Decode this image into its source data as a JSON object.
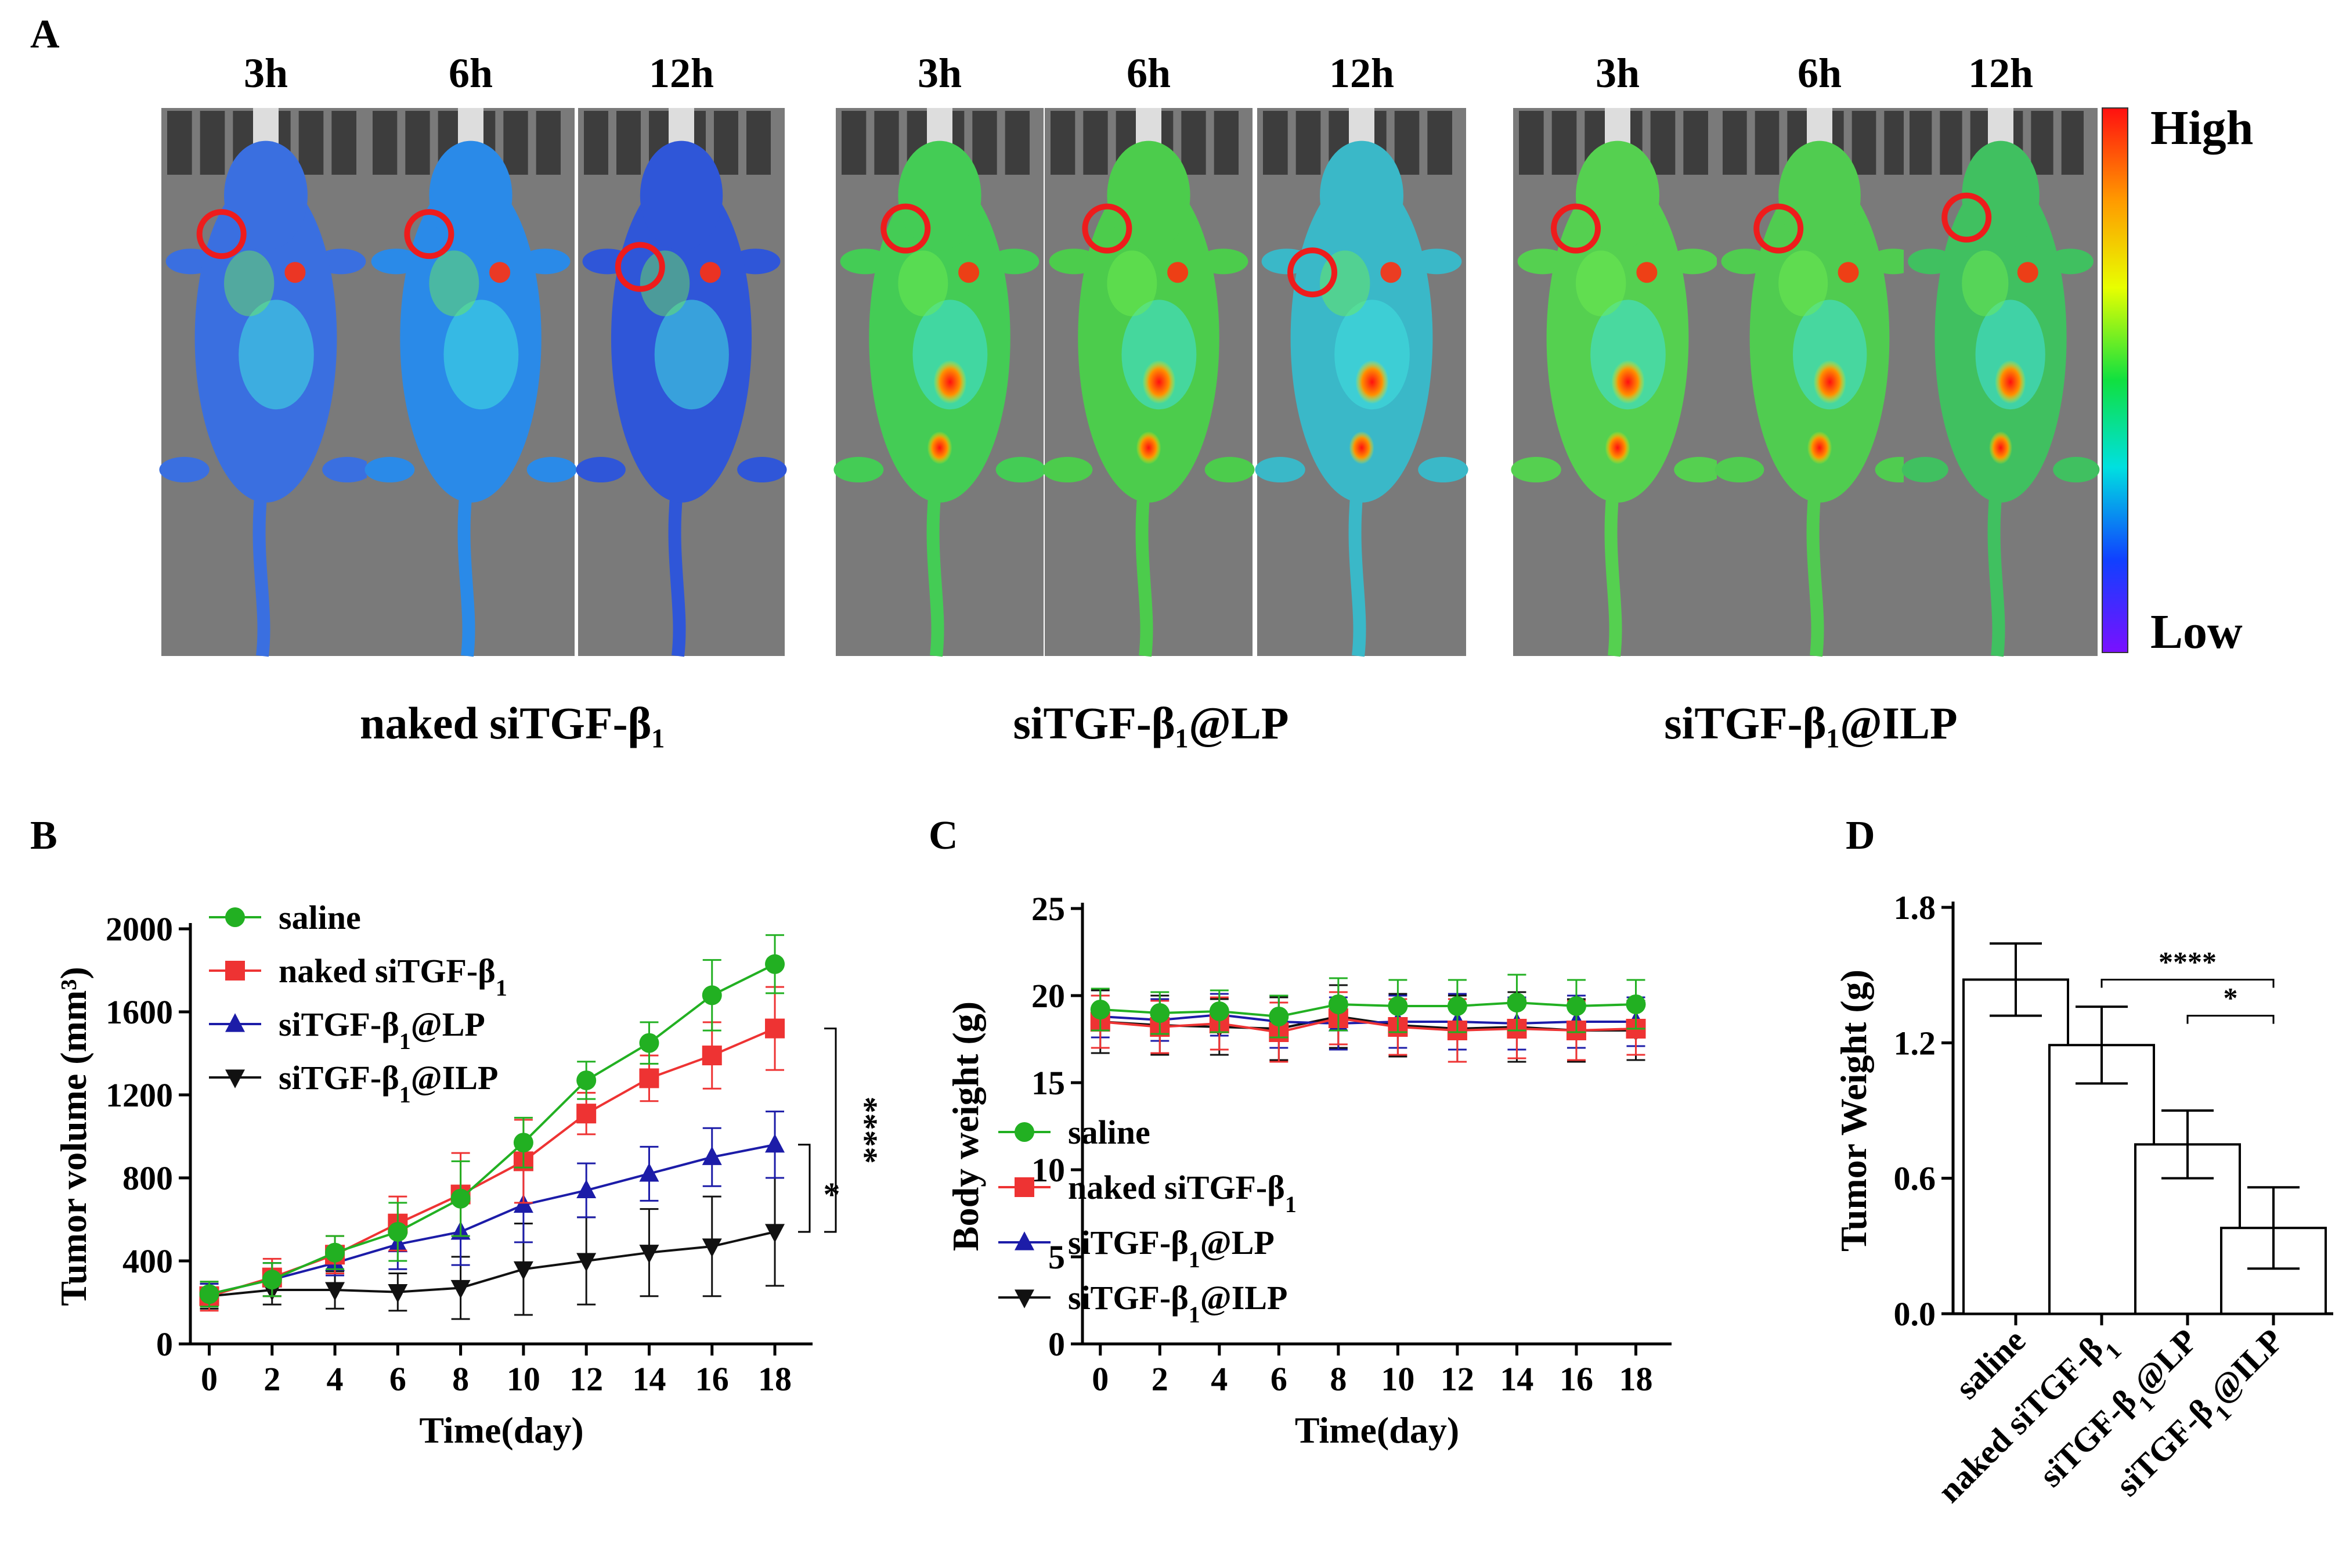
{
  "panels": {
    "a": "A",
    "b": "B",
    "c": "C",
    "d": "D"
  },
  "imaging": {
    "times": [
      "3h",
      "6h",
      "12h",
      "3h",
      "6h",
      "12h",
      "3h",
      "6h",
      "12h"
    ],
    "groups": [
      "naked siTGF-β₁",
      "siTGF-β₁@LP",
      "siTGF-β₁@ILP"
    ],
    "colorbar": {
      "high": "High",
      "low": "Low"
    },
    "colors": {
      "background": "#7a7a7a",
      "body": "#2f66d8",
      "hot": "#ff2a10",
      "circle": "#ee1c1c"
    }
  },
  "chart_data": [
    {
      "id": "B",
      "type": "line",
      "title": "",
      "xlabel": "Time(day)",
      "ylabel": "Tumor volume (mm³)",
      "xlim": [
        -0.6,
        19.2
      ],
      "ylim": [
        0,
        2000
      ],
      "yticks": [
        0,
        400,
        800,
        1200,
        1600,
        2000
      ],
      "x": [
        0,
        2,
        4,
        6,
        8,
        10,
        12,
        14,
        16,
        18
      ],
      "xticks": [
        "0",
        "2",
        "4",
        "6",
        "8",
        "10",
        "12",
        "14",
        "16",
        "18"
      ],
      "legend_position": "top-left",
      "series": [
        {
          "name": "saline",
          "color": "#22b022",
          "marker": "circle",
          "values": [
            240,
            310,
            440,
            540,
            700,
            970,
            1270,
            1450,
            1680,
            1830
          ],
          "errors": [
            60,
            80,
            80,
            140,
            180,
            120,
            90,
            100,
            170,
            140
          ]
        },
        {
          "name": "naked siTGF-β1",
          "color": "#ee3333",
          "marker": "square",
          "values": [
            230,
            320,
            430,
            580,
            720,
            880,
            1110,
            1280,
            1390,
            1520
          ],
          "errors": [
            70,
            90,
            90,
            130,
            200,
            200,
            100,
            110,
            160,
            200
          ]
        },
        {
          "name": "siTGF-β1@LP",
          "color": "#1c1ca8",
          "marker": "triangle",
          "values": [
            240,
            310,
            390,
            480,
            540,
            670,
            740,
            820,
            900,
            960
          ],
          "errors": [
            50,
            80,
            60,
            120,
            160,
            180,
            130,
            130,
            140,
            160
          ]
        },
        {
          "name": "siTGF-β1@ILP",
          "color": "#111111",
          "marker": "triangle-down",
          "values": [
            230,
            260,
            260,
            250,
            270,
            360,
            400,
            440,
            470,
            540
          ],
          "errors": [
            60,
            70,
            90,
            90,
            150,
            220,
            210,
            210,
            240,
            260
          ]
        }
      ],
      "significance": [
        {
          "label": "*",
          "from": 960,
          "to": 540
        },
        {
          "label": "****",
          "from": 1520,
          "to": 540
        }
      ]
    },
    {
      "id": "C",
      "type": "line",
      "title": "",
      "xlabel": "Time(day)",
      "ylabel": "Body weight (g)",
      "xlim": [
        -0.6,
        19.2
      ],
      "ylim": [
        0,
        25
      ],
      "yticks": [
        0,
        5,
        10,
        15,
        20,
        25
      ],
      "x": [
        0,
        2,
        4,
        6,
        8,
        10,
        12,
        14,
        16,
        18
      ],
      "xticks": [
        "0",
        "2",
        "4",
        "6",
        "8",
        "10",
        "12",
        "14",
        "16",
        "18"
      ],
      "legend_position": "bottom-left",
      "series": [
        {
          "name": "saline",
          "color": "#22b022",
          "marker": "circle",
          "values": [
            19.2,
            19.0,
            19.1,
            18.8,
            19.5,
            19.4,
            19.4,
            19.6,
            19.4,
            19.5
          ],
          "errors": [
            1.2,
            1.2,
            1.2,
            1.2,
            1.5,
            1.5,
            1.5,
            1.6,
            1.5,
            1.4
          ]
        },
        {
          "name": "naked siTGF-β1",
          "color": "#ee3333",
          "marker": "square",
          "values": [
            18.5,
            18.2,
            18.4,
            17.9,
            18.7,
            18.2,
            18.0,
            18.1,
            18.0,
            18.1
          ],
          "errors": [
            1.5,
            1.5,
            1.5,
            1.7,
            1.5,
            1.6,
            1.8,
            1.7,
            1.7,
            1.5
          ]
        },
        {
          "name": "siTGF-β1@LP",
          "color": "#1c1ca8",
          "marker": "triangle",
          "values": [
            18.8,
            18.6,
            18.9,
            18.5,
            18.4,
            18.5,
            18.5,
            18.4,
            18.5,
            18.5
          ],
          "errors": [
            1.2,
            1.2,
            1.2,
            1.5,
            1.5,
            1.5,
            1.6,
            1.5,
            1.5,
            1.4
          ]
        },
        {
          "name": "siTGF-β1@ILP",
          "color": "#111111",
          "marker": "triangle-down",
          "values": [
            18.5,
            18.3,
            18.2,
            18.1,
            18.8,
            18.3,
            18.1,
            18.2,
            18.0,
            18.0
          ],
          "errors": [
            1.8,
            1.7,
            1.6,
            1.8,
            1.8,
            1.8,
            1.9,
            2.0,
            1.8,
            1.7
          ]
        }
      ]
    },
    {
      "id": "D",
      "type": "bar",
      "title": "",
      "xlabel": "",
      "ylabel": "Tumor Weight (g)",
      "ylim": [
        0,
        1.8
      ],
      "yticks": [
        "0.0",
        "0.6",
        "1.2",
        "1.8"
      ],
      "categories": [
        "saline",
        "naked siTGF-β1",
        "siTGF-β1@LP",
        "siTGF-β1@ILP"
      ],
      "values": [
        1.48,
        1.19,
        0.75,
        0.38
      ],
      "errors": [
        0.16,
        0.17,
        0.15,
        0.18
      ],
      "significance": [
        {
          "label": "****",
          "from": "naked siTGF-β1",
          "to": "siTGF-β1@ILP"
        },
        {
          "label": "*",
          "from": "siTGF-β1@LP",
          "to": "siTGF-β1@ILP"
        }
      ]
    }
  ]
}
